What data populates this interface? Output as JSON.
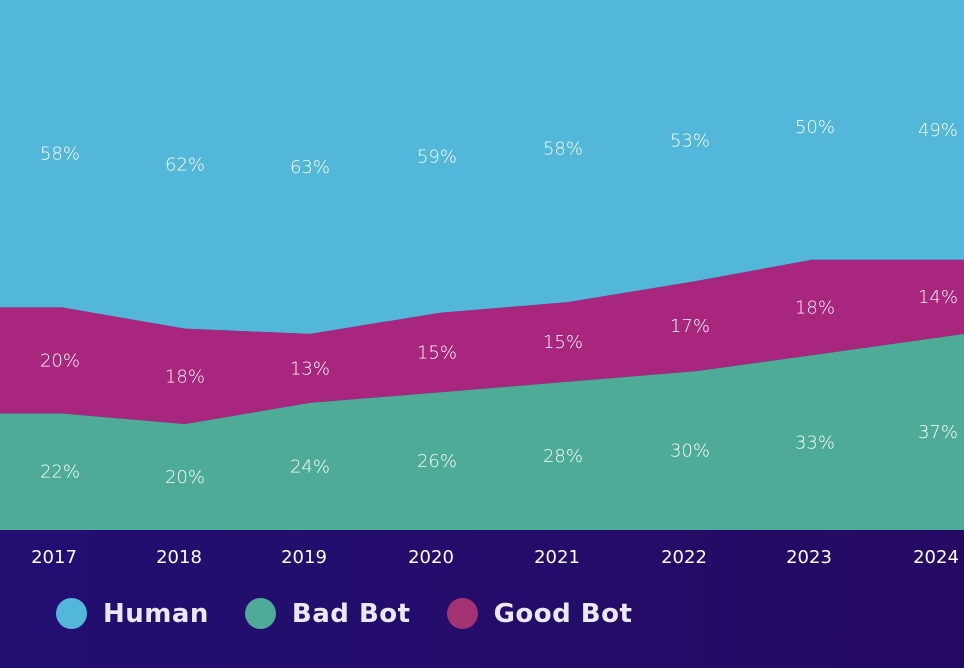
{
  "chart_data": {
    "type": "area",
    "stacked": true,
    "categories": [
      "2017",
      "2018",
      "2019",
      "2020",
      "2021",
      "2022",
      "2023",
      "2024"
    ],
    "ylim": [
      0,
      100
    ],
    "grid": false,
    "legend_placement": "bottom-left",
    "series": [
      {
        "name": "Bad Bot",
        "color": "#4eab97",
        "values": [
          22,
          20,
          24,
          26,
          28,
          30,
          33,
          37
        ]
      },
      {
        "name": "Good Bot",
        "color": "#a8267d",
        "values": [
          20,
          18,
          13,
          15,
          15,
          17,
          18,
          14
        ]
      },
      {
        "name": "Human",
        "color": "#53b7da",
        "values": [
          58,
          62,
          63,
          59,
          58,
          53,
          50,
          49
        ]
      }
    ]
  },
  "legend": [
    {
      "label": "Human",
      "color": "#53b7da"
    },
    {
      "label": "Bad Bot",
      "color": "#4eab97"
    },
    {
      "label": "Good Bot",
      "color": "#a33272"
    }
  ]
}
